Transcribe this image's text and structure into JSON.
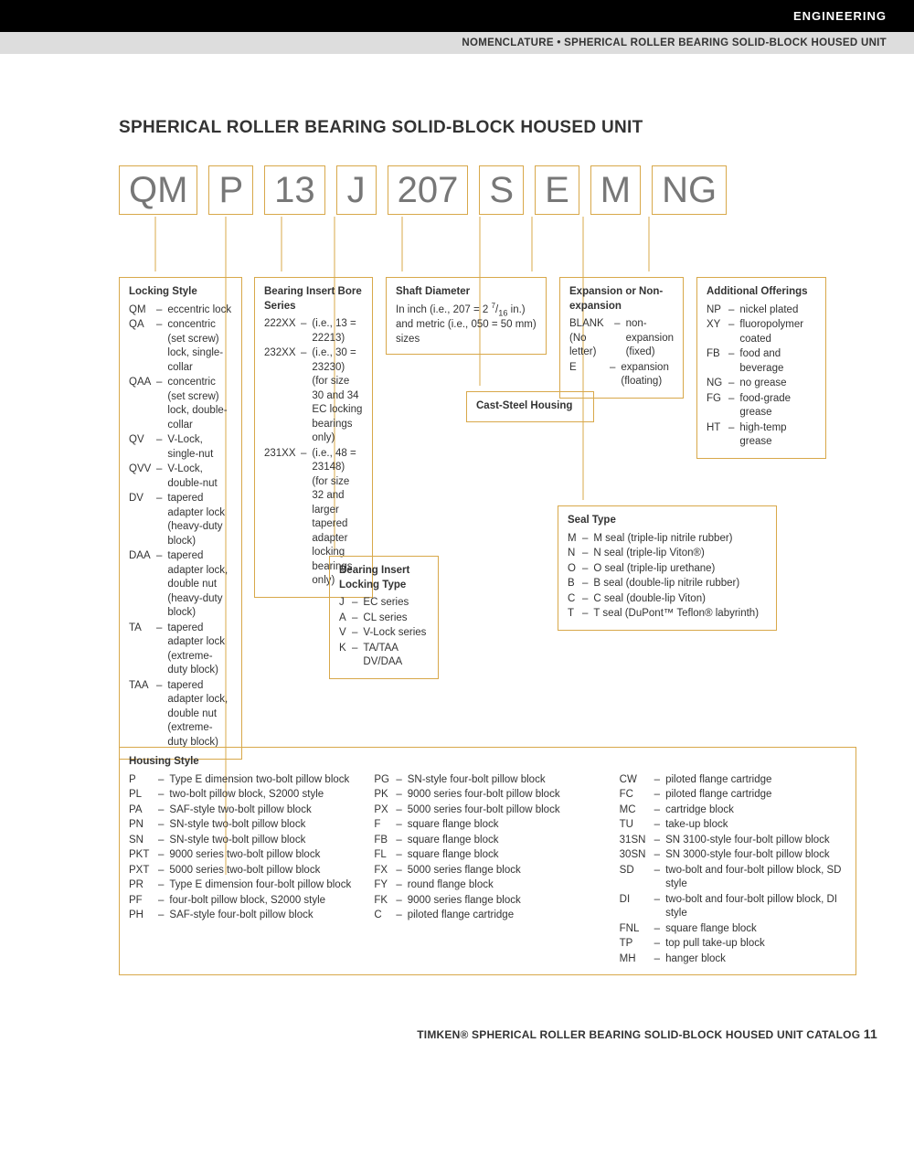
{
  "header": {
    "section": "ENGINEERING",
    "breadcrumb": "NOMENCLATURE • SPHERICAL ROLLER BEARING SOLID-BLOCK HOUSED UNIT"
  },
  "title": "SPHERICAL ROLLER BEARING SOLID-BLOCK HOUSED UNIT",
  "code_parts": [
    "QM",
    "P",
    "13",
    "J",
    "207",
    "S",
    "E",
    "M",
    "NG"
  ],
  "boxes": {
    "locking_style": {
      "title": "Locking Style",
      "items": [
        {
          "c": "QM",
          "t": "eccentric lock"
        },
        {
          "c": "QA",
          "t": "concentric (set screw) lock, single-collar"
        },
        {
          "c": "QAA",
          "t": "concentric (set screw) lock, double-collar"
        },
        {
          "c": "QV",
          "t": "V-Lock, single-nut"
        },
        {
          "c": "QVV",
          "t": "V-Lock, double-nut"
        },
        {
          "c": "DV",
          "t": "tapered adapter lock (heavy-duty block)"
        },
        {
          "c": "DAA",
          "t": "tapered adapter lock, double nut (heavy-duty block)"
        },
        {
          "c": "TA",
          "t": "tapered adapter lock (extreme-duty block)"
        },
        {
          "c": "TAA",
          "t": "tapered adapter lock, double nut (extreme-duty block)"
        }
      ]
    },
    "bore_series": {
      "title": "Bearing Insert Bore Series",
      "items": [
        {
          "c": "222XX",
          "t": "(i.e., 13 = 22213)"
        },
        {
          "c": "232XX",
          "t": "(i.e., 30 = 23230) (for size 30 and 34 EC locking bearings only)"
        },
        {
          "c": "231XX",
          "t": "(i.e., 48 = 23148) (for size 32 and larger tapered adapter locking bearings only)"
        }
      ]
    },
    "shaft_dia": {
      "title": "Shaft Diameter",
      "text_a": "In inch (i.e., 207 = 2 ",
      "text_b": " in.) and metric (i.e., 050 = 50 mm) sizes"
    },
    "expansion": {
      "title": "Expansion or Non-expansion",
      "items": [
        {
          "c": "BLANK (No letter)",
          "t": "non-expansion (fixed)"
        },
        {
          "c": "E",
          "t": "expansion (floating)"
        }
      ]
    },
    "additional": {
      "title": "Additional Offerings",
      "items": [
        {
          "c": "NP",
          "t": "nickel plated"
        },
        {
          "c": "XY",
          "t": "fluoropolymer coated"
        },
        {
          "c": "FB",
          "t": "food and beverage"
        },
        {
          "c": "NG",
          "t": "no grease"
        },
        {
          "c": "FG",
          "t": "food-grade grease"
        },
        {
          "c": "HT",
          "t": "high-temp grease"
        }
      ]
    },
    "cast_steel": {
      "title": "Cast-Steel Housing"
    },
    "locking_type": {
      "title": "Bearing Insert Locking Type",
      "items": [
        {
          "c": "J",
          "t": "EC series"
        },
        {
          "c": "A",
          "t": "CL series"
        },
        {
          "c": "V",
          "t": "V-Lock series"
        },
        {
          "c": "K",
          "t": "TA/TAA DV/DAA"
        }
      ]
    },
    "seal_type": {
      "title": "Seal Type",
      "items": [
        {
          "c": "M",
          "t": "M seal (triple-lip nitrile rubber)"
        },
        {
          "c": "N",
          "t": "N seal (triple-lip Viton®)"
        },
        {
          "c": "O",
          "t": "O seal (triple-lip urethane)"
        },
        {
          "c": "B",
          "t": "B seal (double-lip nitrile rubber)"
        },
        {
          "c": "C",
          "t": "C seal (double-lip Viton)"
        },
        {
          "c": "T",
          "t": "T seal (DuPont™ Teflon® labyrinth)"
        }
      ]
    },
    "housing_style": {
      "title": "Housing Style",
      "col1": [
        {
          "c": "P",
          "t": "Type E dimension two-bolt pillow block"
        },
        {
          "c": "PL",
          "t": "two-bolt pillow block, S2000 style"
        },
        {
          "c": "PA",
          "t": "SAF-style two-bolt pillow block"
        },
        {
          "c": "PN",
          "t": "SN-style two-bolt pillow block"
        },
        {
          "c": "SN",
          "t": "SN-style two-bolt pillow block"
        },
        {
          "c": "PKT",
          "t": "9000 series two-bolt pillow block"
        },
        {
          "c": "PXT",
          "t": "5000 series two-bolt pillow block"
        },
        {
          "c": "PR",
          "t": "Type E dimension four-bolt pillow block"
        },
        {
          "c": "PF",
          "t": "four-bolt pillow block, S2000 style"
        },
        {
          "c": "PH",
          "t": "SAF-style four-bolt pillow block"
        }
      ],
      "col2": [
        {
          "c": "PG",
          "t": "SN-style four-bolt pillow block"
        },
        {
          "c": "PK",
          "t": "9000 series four-bolt pillow block"
        },
        {
          "c": "PX",
          "t": "5000 series four-bolt pillow block"
        },
        {
          "c": "F",
          "t": "square flange block"
        },
        {
          "c": "FB",
          "t": "square flange block"
        },
        {
          "c": "FL",
          "t": "square flange block"
        },
        {
          "c": "FX",
          "t": "5000 series flange block"
        },
        {
          "c": "FY",
          "t": "round flange block"
        },
        {
          "c": "FK",
          "t": "9000 series flange block"
        },
        {
          "c": "C",
          "t": "piloted flange cartridge"
        }
      ],
      "col3": [
        {
          "c": "CW",
          "t": "piloted flange cartridge"
        },
        {
          "c": "FC",
          "t": "piloted flange cartridge"
        },
        {
          "c": "MC",
          "t": "cartridge block"
        },
        {
          "c": "TU",
          "t": "take-up block"
        },
        {
          "c": "31SN",
          "t": "SN 3100-style four-bolt pillow block"
        },
        {
          "c": "30SN",
          "t": "SN 3000-style four-bolt pillow block"
        },
        {
          "c": "SD",
          "t": "two-bolt and four-bolt pillow block, SD style"
        },
        {
          "c": "DI",
          "t": "two-bolt and four-bolt pillow block, DI style"
        },
        {
          "c": "FNL",
          "t": "square flange block"
        },
        {
          "c": "TP",
          "t": "top pull take-up block"
        },
        {
          "c": "MH",
          "t": "hanger block"
        }
      ]
    }
  },
  "footer": {
    "text": "TIMKEN® SPHERICAL ROLLER BEARING SOLID-BLOCK HOUSED UNIT CATALOG",
    "page": "11"
  },
  "colors": {
    "box_border": "#d8a84a",
    "code_text": "#777",
    "text": "#333",
    "bg": "#ffffff"
  }
}
